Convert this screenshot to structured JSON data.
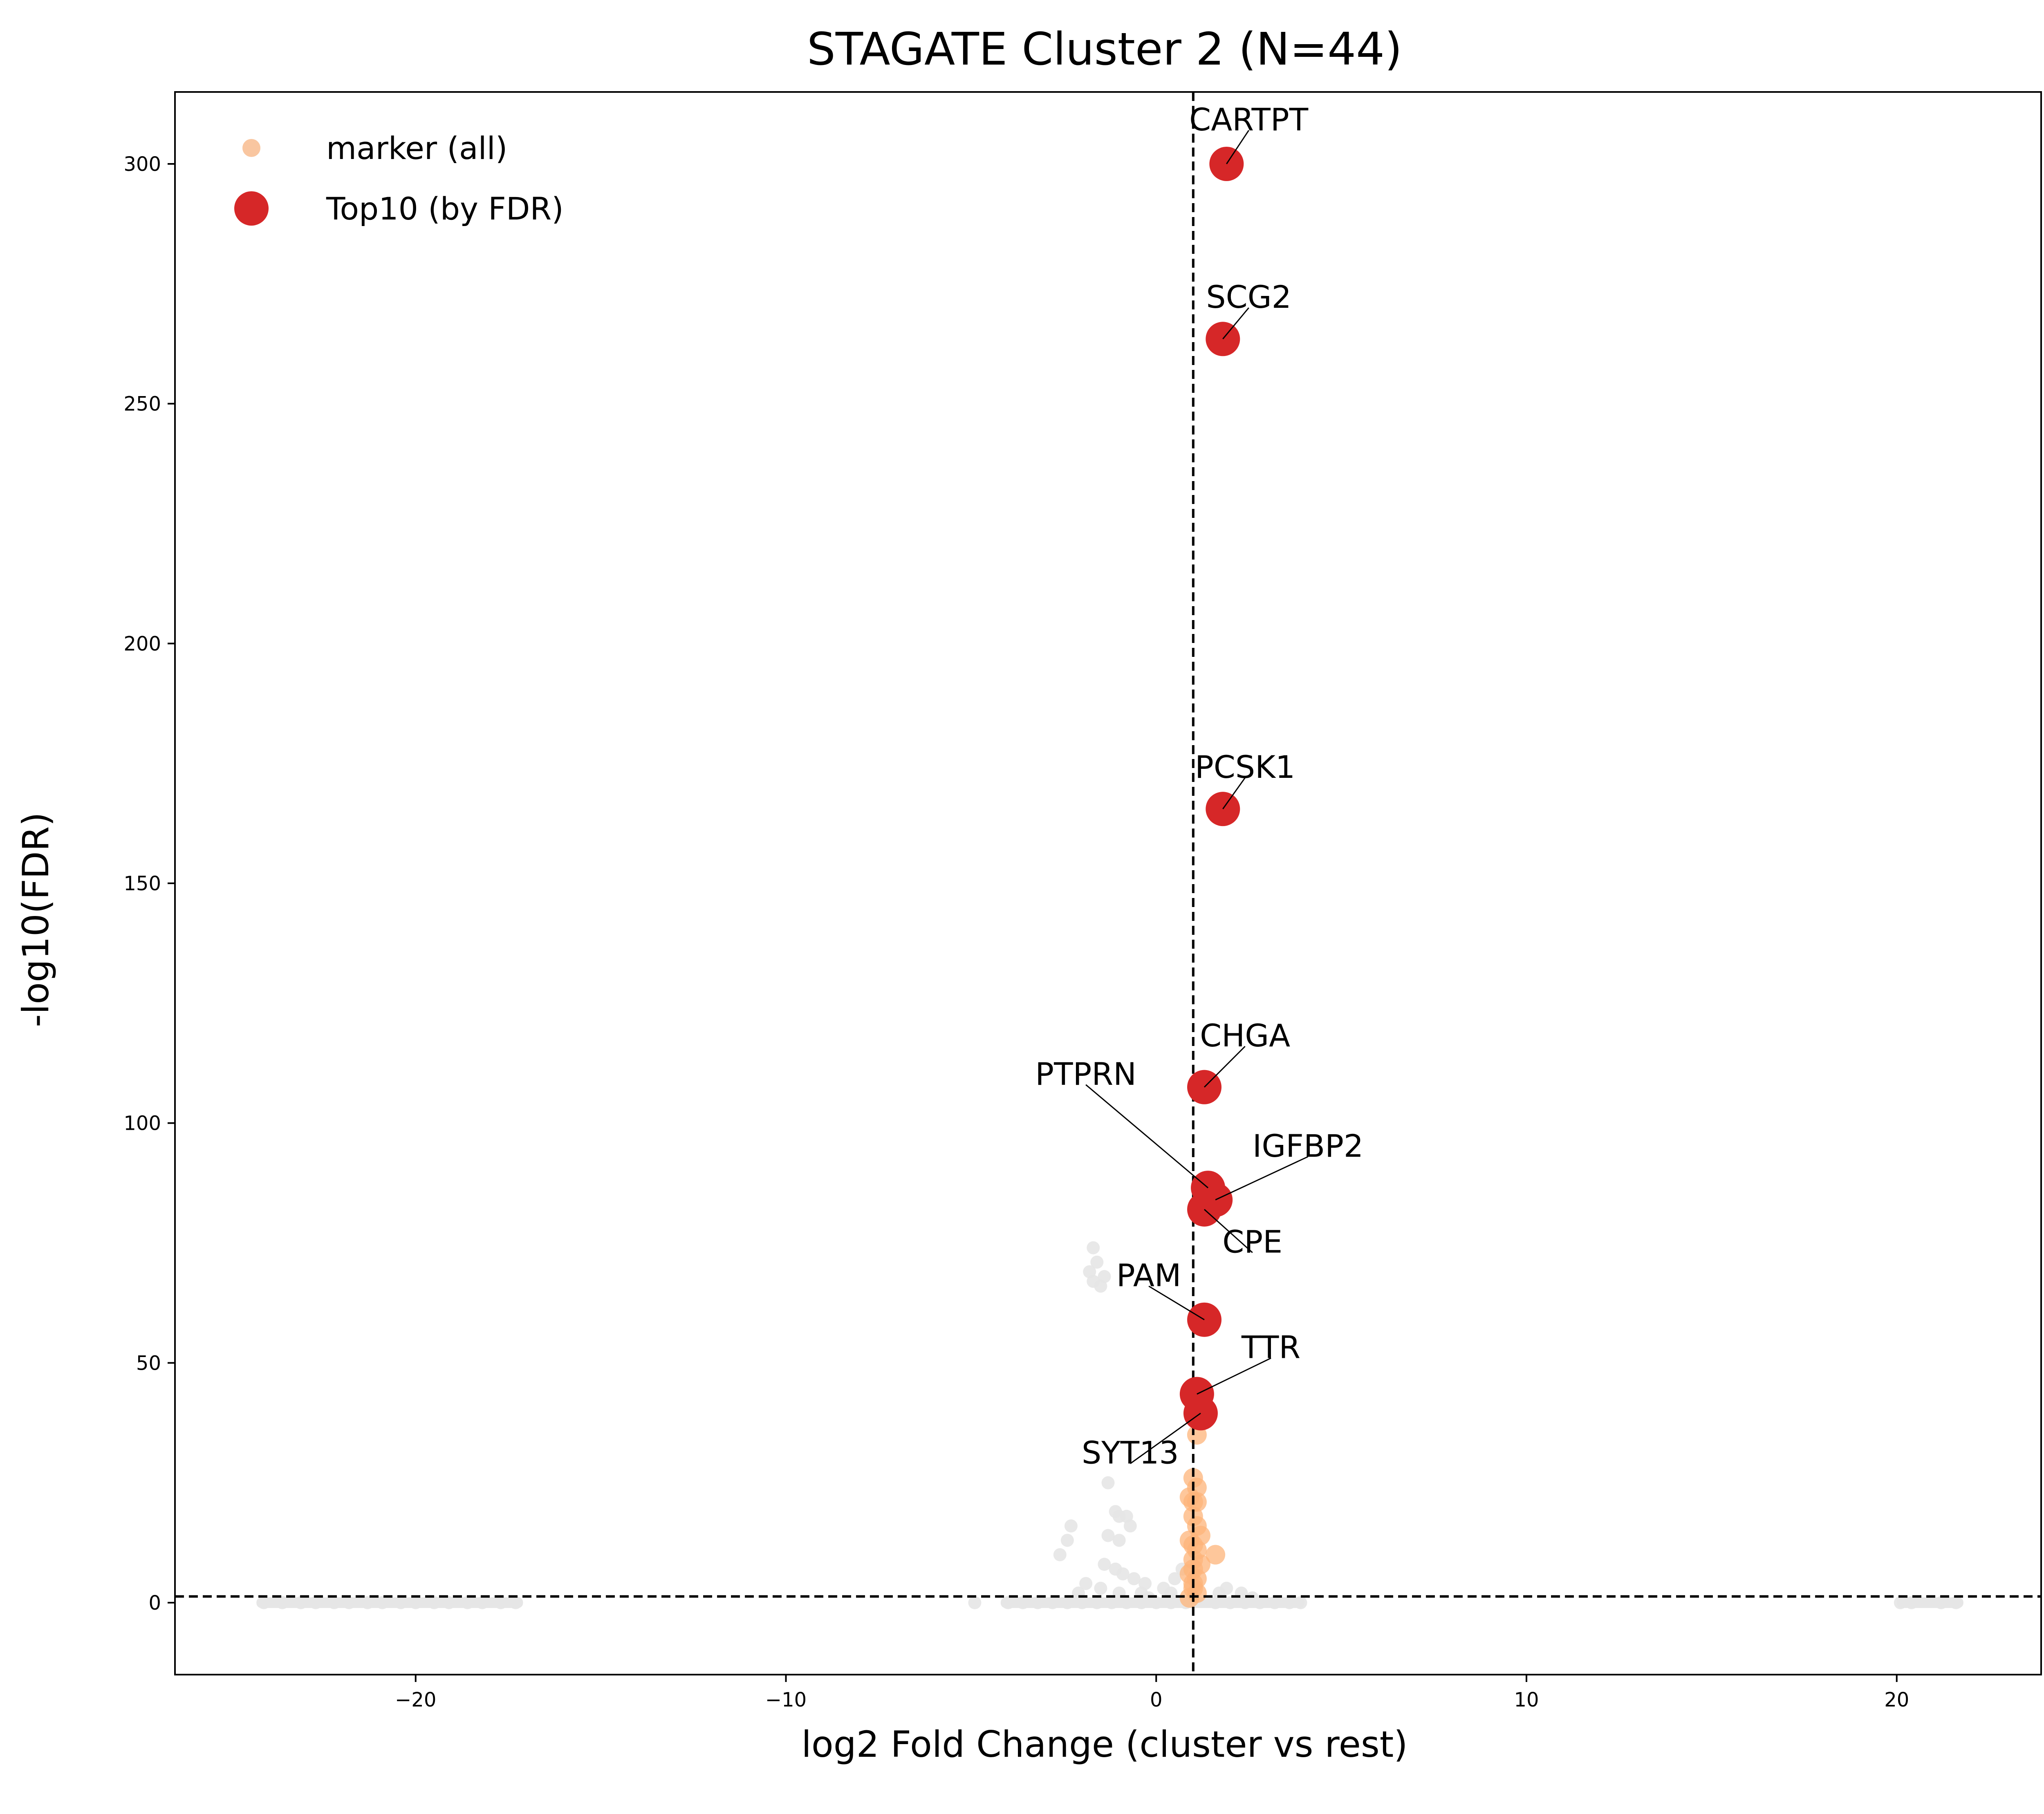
{
  "chart_data": {
    "type": "scatter",
    "title": "STAGATE Cluster 2 (N=44)",
    "xlabel": "log2 Fold Change (cluster vs rest)",
    "ylabel": "-log10(FDR)",
    "xlim": [
      -26.5,
      23.9
    ],
    "ylim": [
      -15,
      315
    ],
    "xticks": [
      -20,
      -10,
      0,
      10,
      20
    ],
    "yticks": [
      0,
      50,
      100,
      150,
      200,
      250,
      300
    ],
    "xtick_labels": [
      "−20",
      "−10",
      "0",
      "10",
      "20"
    ],
    "ytick_labels": [
      "0",
      "50",
      "100",
      "150",
      "200",
      "250",
      "300"
    ],
    "thresholds": {
      "vertical_x": 1.0,
      "horizontal_y": 1.3
    },
    "legend": {
      "placement": "top-left",
      "entries": [
        {
          "label": "marker (all)",
          "color": "#f9c6a0"
        },
        {
          "label": "Top10 (by FDR)",
          "color": "#d62728"
        }
      ]
    },
    "colors": {
      "background": "#e6e6e6",
      "marker": "#fdb47a",
      "top10": "#d62728"
    },
    "series": [
      {
        "role": "background",
        "points": [
          [
            -24.1,
            0
          ],
          [
            -23.6,
            0
          ],
          [
            -23.1,
            0
          ],
          [
            -22.7,
            0
          ],
          [
            -22.2,
            0
          ],
          [
            -21.8,
            0
          ],
          [
            -21.3,
            0
          ],
          [
            -20.9,
            0
          ],
          [
            -20.4,
            0
          ],
          [
            -20.0,
            0
          ],
          [
            -19.5,
            0
          ],
          [
            -19.1,
            0
          ],
          [
            -18.6,
            0
          ],
          [
            -18.2,
            0
          ],
          [
            -17.7,
            0
          ],
          [
            -17.3,
            0
          ],
          [
            -4.9,
            0
          ],
          [
            -4.0,
            0
          ],
          [
            -3.6,
            0
          ],
          [
            -3.2,
            0
          ],
          [
            -2.8,
            0
          ],
          [
            -2.4,
            0
          ],
          [
            -2.0,
            0
          ],
          [
            -1.6,
            0
          ],
          [
            -1.2,
            0
          ],
          [
            -0.8,
            0
          ],
          [
            -0.4,
            0
          ],
          [
            0.0,
            0
          ],
          [
            0.4,
            0
          ],
          [
            0.8,
            0
          ],
          [
            1.6,
            0
          ],
          [
            2.0,
            0
          ],
          [
            2.4,
            0
          ],
          [
            2.8,
            0
          ],
          [
            3.2,
            0
          ],
          [
            3.6,
            0
          ],
          [
            3.9,
            0
          ],
          [
            -1.7,
            74
          ],
          [
            -1.6,
            71
          ],
          [
            -1.8,
            69
          ],
          [
            -1.4,
            68
          ],
          [
            -1.7,
            67
          ],
          [
            -1.5,
            66
          ],
          [
            -1.3,
            25
          ],
          [
            -1.1,
            19
          ],
          [
            -1.0,
            18
          ],
          [
            -0.8,
            18
          ],
          [
            -0.7,
            16
          ],
          [
            -1.3,
            14
          ],
          [
            -1.0,
            13
          ],
          [
            -2.3,
            16
          ],
          [
            -2.4,
            13
          ],
          [
            -2.6,
            10
          ],
          [
            -1.4,
            8
          ],
          [
            -1.1,
            7
          ],
          [
            -0.9,
            6
          ],
          [
            -0.6,
            5
          ],
          [
            -0.3,
            4
          ],
          [
            -1.9,
            4
          ],
          [
            -1.5,
            3
          ],
          [
            -1.0,
            2
          ],
          [
            -0.4,
            2
          ],
          [
            0.2,
            3
          ],
          [
            0.5,
            5
          ],
          [
            0.7,
            7
          ],
          [
            0.4,
            2
          ],
          [
            1.9,
            3
          ],
          [
            2.3,
            2
          ],
          [
            1.7,
            2
          ],
          [
            2.6,
            1
          ],
          [
            -2.1,
            2
          ],
          [
            -0.2,
            1
          ],
          [
            20.1,
            0
          ],
          [
            20.4,
            0
          ],
          [
            21.2,
            0
          ],
          [
            21.6,
            0
          ]
        ]
      },
      {
        "role": "marker",
        "points": [
          [
            1.1,
            35
          ],
          [
            1.0,
            26
          ],
          [
            1.1,
            24
          ],
          [
            0.9,
            22
          ],
          [
            1.0,
            21
          ],
          [
            1.1,
            21
          ],
          [
            1.0,
            18
          ],
          [
            1.1,
            16
          ],
          [
            1.2,
            14
          ],
          [
            0.9,
            13
          ],
          [
            1.0,
            12
          ],
          [
            1.1,
            11
          ],
          [
            1.6,
            10
          ],
          [
            1.0,
            9
          ],
          [
            1.2,
            8
          ],
          [
            1.0,
            7
          ],
          [
            0.9,
            6
          ],
          [
            1.1,
            5
          ],
          [
            1.0,
            3
          ],
          [
            1.1,
            2
          ],
          [
            0.9,
            1
          ],
          [
            1.0,
            4
          ]
        ]
      },
      {
        "role": "top10",
        "points": [
          {
            "gene": "CARTPT",
            "x": 1.9,
            "y": 300
          },
          {
            "gene": "SCG2",
            "x": 1.8,
            "y": 263.5
          },
          {
            "gene": "PCSK1",
            "x": 1.8,
            "y": 165.5
          },
          {
            "gene": "CHGA",
            "x": 1.3,
            "y": 107.5
          },
          {
            "gene": "PTPRN",
            "x": 1.4,
            "y": 86.5
          },
          {
            "gene": "IGFBP2",
            "x": 1.6,
            "y": 84
          },
          {
            "gene": "CPE",
            "x": 1.3,
            "y": 82
          },
          {
            "gene": "PAM",
            "x": 1.3,
            "y": 59
          },
          {
            "gene": "TTR",
            "x": 1.1,
            "y": 43.5
          },
          {
            "gene": "SYT13",
            "x": 1.2,
            "y": 39.5
          }
        ]
      }
    ],
    "annotations": [
      {
        "gene": "CARTPT",
        "x": 2.5,
        "y": 307
      },
      {
        "gene": "SCG2",
        "x": 2.5,
        "y": 270
      },
      {
        "gene": "PCSK1",
        "x": 2.4,
        "y": 172
      },
      {
        "gene": "CHGA",
        "x": 2.4,
        "y": 116
      },
      {
        "gene": "PTPRN",
        "x": -1.9,
        "y": 108
      },
      {
        "gene": "IGFBP2",
        "x": 4.1,
        "y": 93
      },
      {
        "gene": "CPE",
        "x": 2.6,
        "y": 73
      },
      {
        "gene": "PAM",
        "x": -0.2,
        "y": 66
      },
      {
        "gene": "TTR",
        "x": 3.1,
        "y": 51
      },
      {
        "gene": "SYT13",
        "x": -0.7,
        "y": 29
      }
    ]
  }
}
